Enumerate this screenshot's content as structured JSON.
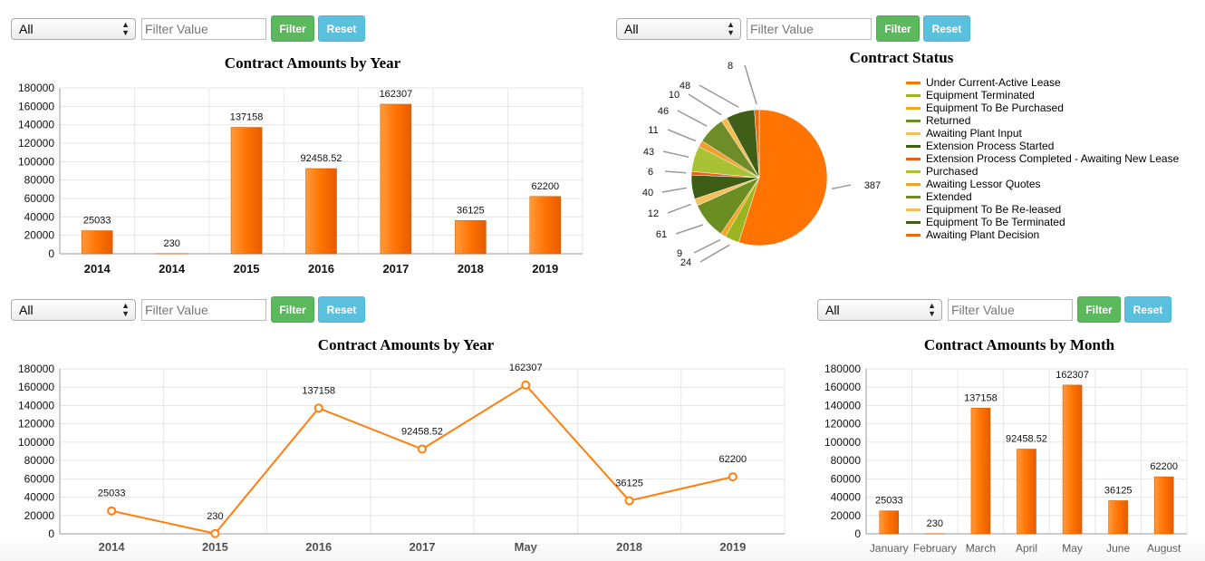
{
  "filters": [
    {
      "select": "All",
      "placeholder": "Filter Value",
      "filter": "Filter",
      "reset": "Reset"
    },
    {
      "select": "All",
      "placeholder": "Filter Value",
      "filter": "Filter",
      "reset": "Reset"
    },
    {
      "select": "All",
      "placeholder": "Filter Value",
      "filter": "Filter",
      "reset": "Reset"
    },
    {
      "select": "All",
      "placeholder": "Filter Value",
      "filter": "Filter",
      "reset": "Reset"
    }
  ],
  "colors": {
    "bar": "#ff7f0e",
    "line": "#ff7f0e",
    "grid": "#e6e6e6",
    "axis": "#999999"
  },
  "chart_data": [
    {
      "type": "bar",
      "title": "Contract Amounts by Year",
      "categories": [
        "2014",
        "2014",
        "2015",
        "2016",
        "2017",
        "2018",
        "2019"
      ],
      "values": [
        25033,
        230,
        137158,
        92458.52,
        162307,
        36125,
        62200
      ],
      "labels": [
        "25033",
        "230",
        "137158",
        "92458.52",
        "162307",
        "36125",
        "62200"
      ],
      "yticks": [
        "180000",
        "160000",
        "140000",
        "120000",
        "100000",
        "80000",
        "60000",
        "40000",
        "20000",
        "0"
      ],
      "ylim": [
        0,
        180000
      ]
    },
    {
      "type": "pie",
      "title": "Contract Status",
      "series": [
        {
          "name": "Under Current-Active Lease",
          "value": 387,
          "color": "#ff7300"
        },
        {
          "name": "Equipment Terminated",
          "value": 24,
          "color": "#9bb521"
        },
        {
          "name": "Equipment To Be Purchased",
          "value": 9,
          "color": "#f5a623"
        },
        {
          "name": "Returned",
          "value": 61,
          "color": "#6b8e23"
        },
        {
          "name": "Awaiting Plant Input",
          "value": 12,
          "color": "#f5c05a"
        },
        {
          "name": "Extension Process Started",
          "value": 40,
          "color": "#3d5c14"
        },
        {
          "name": "Extension Process Completed - Awaiting New Lease",
          "value": 6,
          "color": "#e8601c"
        },
        {
          "name": "Purchased",
          "value": 43,
          "color": "#a9c234"
        },
        {
          "name": "Awaiting Lessor Quotes",
          "value": 11,
          "color": "#f0a030"
        },
        {
          "name": "Extended",
          "value": 46,
          "color": "#6e8c2a"
        },
        {
          "name": "Equipment To Be Re-leased",
          "value": 10,
          "color": "#f7bd52"
        },
        {
          "name": "Equipment To Be Terminated",
          "value": 48,
          "color": "#3f5e17"
        },
        {
          "name": "Awaiting Plant Decision",
          "value": 8,
          "color": "#f06a12"
        }
      ]
    },
    {
      "type": "line",
      "title": "Contract Amounts by Year",
      "categories": [
        "2014",
        "2015",
        "2016",
        "2017",
        "May",
        "2018",
        "2019"
      ],
      "values": [
        25033,
        230,
        137158,
        92458.52,
        162307,
        36125,
        62200
      ],
      "labels": [
        "25033",
        "230",
        "137158",
        "92458.52",
        "162307",
        "36125",
        "62200"
      ],
      "yticks": [
        "180000",
        "160000",
        "140000",
        "120000",
        "100000",
        "80000",
        "60000",
        "40000",
        "20000",
        "0"
      ],
      "ylim": [
        0,
        180000
      ]
    },
    {
      "type": "bar",
      "title": "Contract Amounts by Month",
      "categories": [
        "January",
        "February",
        "March",
        "April",
        "May",
        "June",
        "August"
      ],
      "values": [
        25033,
        230,
        137158,
        92458.52,
        162307,
        36125,
        62200
      ],
      "labels": [
        "25033",
        "230",
        "137158",
        "92458.52",
        "162307",
        "36125",
        "62200"
      ],
      "yticks": [
        "180000",
        "160000",
        "140000",
        "120000",
        "100000",
        "80000",
        "60000",
        "40000",
        "20000",
        "0"
      ],
      "ylim": [
        0,
        180000
      ]
    }
  ]
}
